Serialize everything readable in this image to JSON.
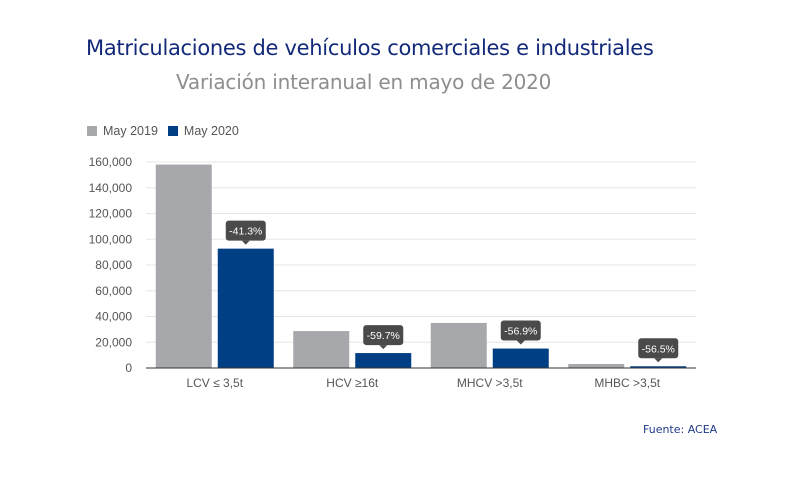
{
  "header": {
    "title": "Matriculaciones de vehículos comerciales e industriales",
    "subtitle": "Variación interanual en mayo de 2020"
  },
  "footer": {
    "source": "Fuente: ACEA"
  },
  "colors": {
    "may_2019": "#a7a8ab",
    "may_2020": "#003f84",
    "annotation_bg": "#4a4a4a",
    "title": "#132a7a",
    "subtitle": "#8e8e8e"
  },
  "chart_data": {
    "type": "bar",
    "title": "Matriculaciones de vehículos comerciales e industriales",
    "subtitle": "Variación interanual en mayo de 2020",
    "xlabel": "",
    "ylabel": "",
    "categories": [
      "LCV ≤ 3,5t",
      "HCV ≥16t",
      "MHCV >3,5t",
      "MHBC >3,5t"
    ],
    "series": [
      {
        "name": "May 2019",
        "values": [
          158000,
          28700,
          35000,
          3100
        ]
      },
      {
        "name": "May 2020",
        "values": [
          92700,
          11600,
          15100,
          1350
        ]
      }
    ],
    "annotations": [
      "-41.3%",
      "-59.7%",
      "-56.9%",
      "-56.5%"
    ],
    "ylim": [
      0,
      160000
    ],
    "yticks": [
      0,
      20000,
      40000,
      60000,
      80000,
      100000,
      120000,
      140000,
      160000
    ],
    "ytick_labels": [
      "0",
      "20,000",
      "40,000",
      "60,000",
      "80,000",
      "100,000",
      "120,000",
      "140,000",
      "160,000"
    ],
    "grid": true,
    "legend": "top-left"
  }
}
